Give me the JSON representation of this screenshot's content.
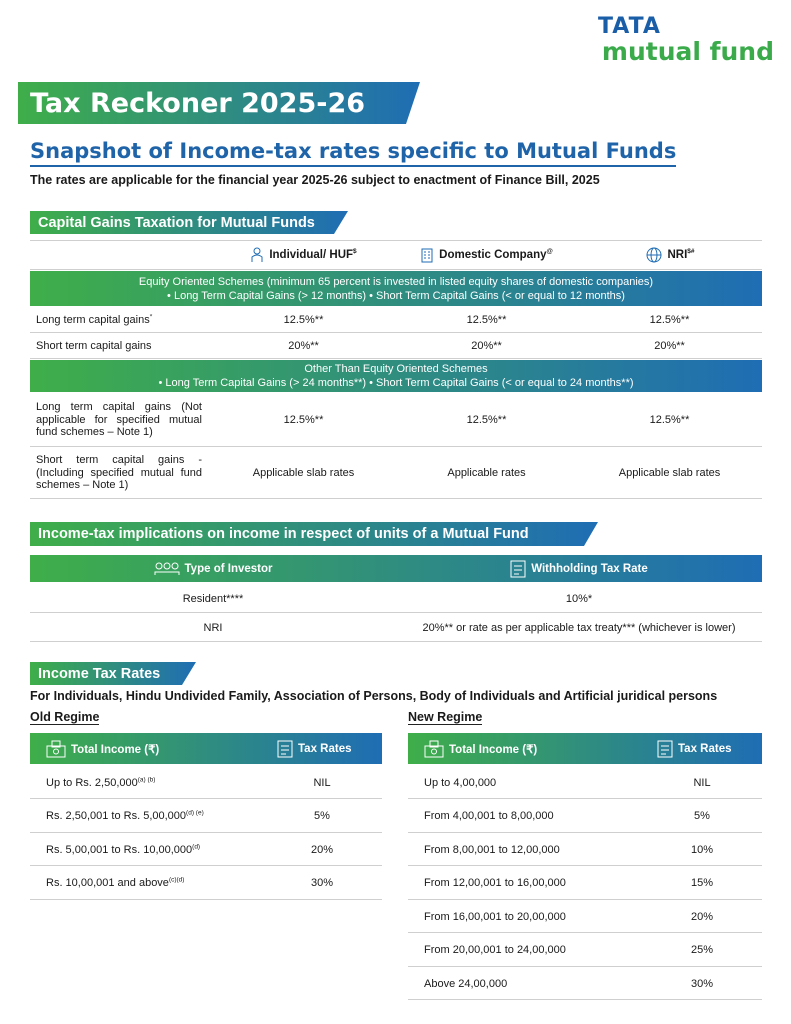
{
  "logo": {
    "brand": "TATA",
    "product": "mutual fund"
  },
  "title": "Tax Reckoner 2025-26",
  "subtitle": "Snapshot of Income-tax rates specific to Mutual Funds",
  "intro": "The rates are applicable for the financial year 2025-26 subject to enactment of Finance Bill, 2025",
  "capital_gains": {
    "heading": "Capital Gains Taxation for Mutual Funds",
    "columns": [
      {
        "text": "Individual/ HUF",
        "sup": "$"
      },
      {
        "text": "Domestic Company",
        "sup": "@"
      },
      {
        "text": "NRI",
        "sup": "$#"
      }
    ],
    "groups": [
      {
        "title": "Equity Oriented Schemes (minimum 65 percent is invested in listed equity shares of domestic companies)",
        "note": "• Long Term Capital Gains (> 12 months)  • Short Term Capital Gains (< or equal to 12 months)",
        "rows": [
          {
            "label": "Long term capital gains",
            "sup": "*",
            "values": [
              "12.5%**",
              "12.5%**",
              "12.5%**"
            ]
          },
          {
            "label": "Short term capital gains",
            "values": [
              "20%**",
              "20%**",
              "20%**"
            ]
          }
        ]
      },
      {
        "title": "Other Than Equity Oriented Schemes",
        "note": "• Long Term Capital Gains (> 24 months**)  • Short Term Capital Gains (< or equal to 24 months**)",
        "rows": [
          {
            "label": "Long term capital gains (Not applicable for specified mutual fund schemes – Note 1)",
            "values": [
              "12.5%**",
              "12.5%**",
              "12.5%**"
            ]
          },
          {
            "label": "Short term capital gains - (Including specified mutual fund schemes – Note 1)",
            "values": [
              "Applicable slab rates",
              "Applicable rates",
              "Applicable slab rates"
            ]
          }
        ]
      }
    ]
  },
  "income_implications": {
    "heading": "Income-tax implications on income in respect of units of a Mutual Fund",
    "columns": [
      "Type of Investor",
      "Withholding Tax Rate"
    ],
    "rows": [
      [
        "Resident****",
        "10%*"
      ],
      [
        "NRI",
        "20%** or rate as per applicable tax treaty*** (whichever is lower)"
      ]
    ]
  },
  "income_tax_rates": {
    "heading": "Income Tax Rates",
    "applies_to": "For Individuals, Hindu Undivided Family, Association of Persons, Body of Individuals and Artificial juridical persons",
    "old_regime": {
      "title": "Old Regime",
      "columns": [
        "Total Income (₹)",
        "Tax Rates"
      ],
      "rows": [
        {
          "income": "Up to Rs. 2,50,000",
          "sup": "(a) (b)",
          "rate": "NIL"
        },
        {
          "income": "Rs. 2,50,001 to Rs. 5,00,000",
          "sup": "(d) (e)",
          "rate": "5%"
        },
        {
          "income": "Rs. 5,00,001 to Rs. 10,00,000",
          "sup": "(d)",
          "rate": "20%"
        },
        {
          "income": "Rs. 10,00,001 and above",
          "sup": "(c)(d)",
          "rate": "30%"
        }
      ]
    },
    "new_regime": {
      "title": "New Regime",
      "columns": [
        "Total Income (₹)",
        "Tax Rates"
      ],
      "rows": [
        {
          "income": "Up to 4,00,000",
          "rate": "NIL"
        },
        {
          "income": "From 4,00,001 to 8,00,000",
          "rate": "5%"
        },
        {
          "income": "From 8,00,001 to 12,00,000",
          "rate": "10%"
        },
        {
          "income": "From 12,00,001 to 16,00,000",
          "rate": "15%"
        },
        {
          "income": "From 16,00,001 to 20,00,000",
          "rate": "20%"
        },
        {
          "income": "From 20,00,001 to 24,00,000",
          "rate": "25%"
        },
        {
          "income": "Above 24,00,000",
          "rate": "30%"
        }
      ]
    }
  }
}
